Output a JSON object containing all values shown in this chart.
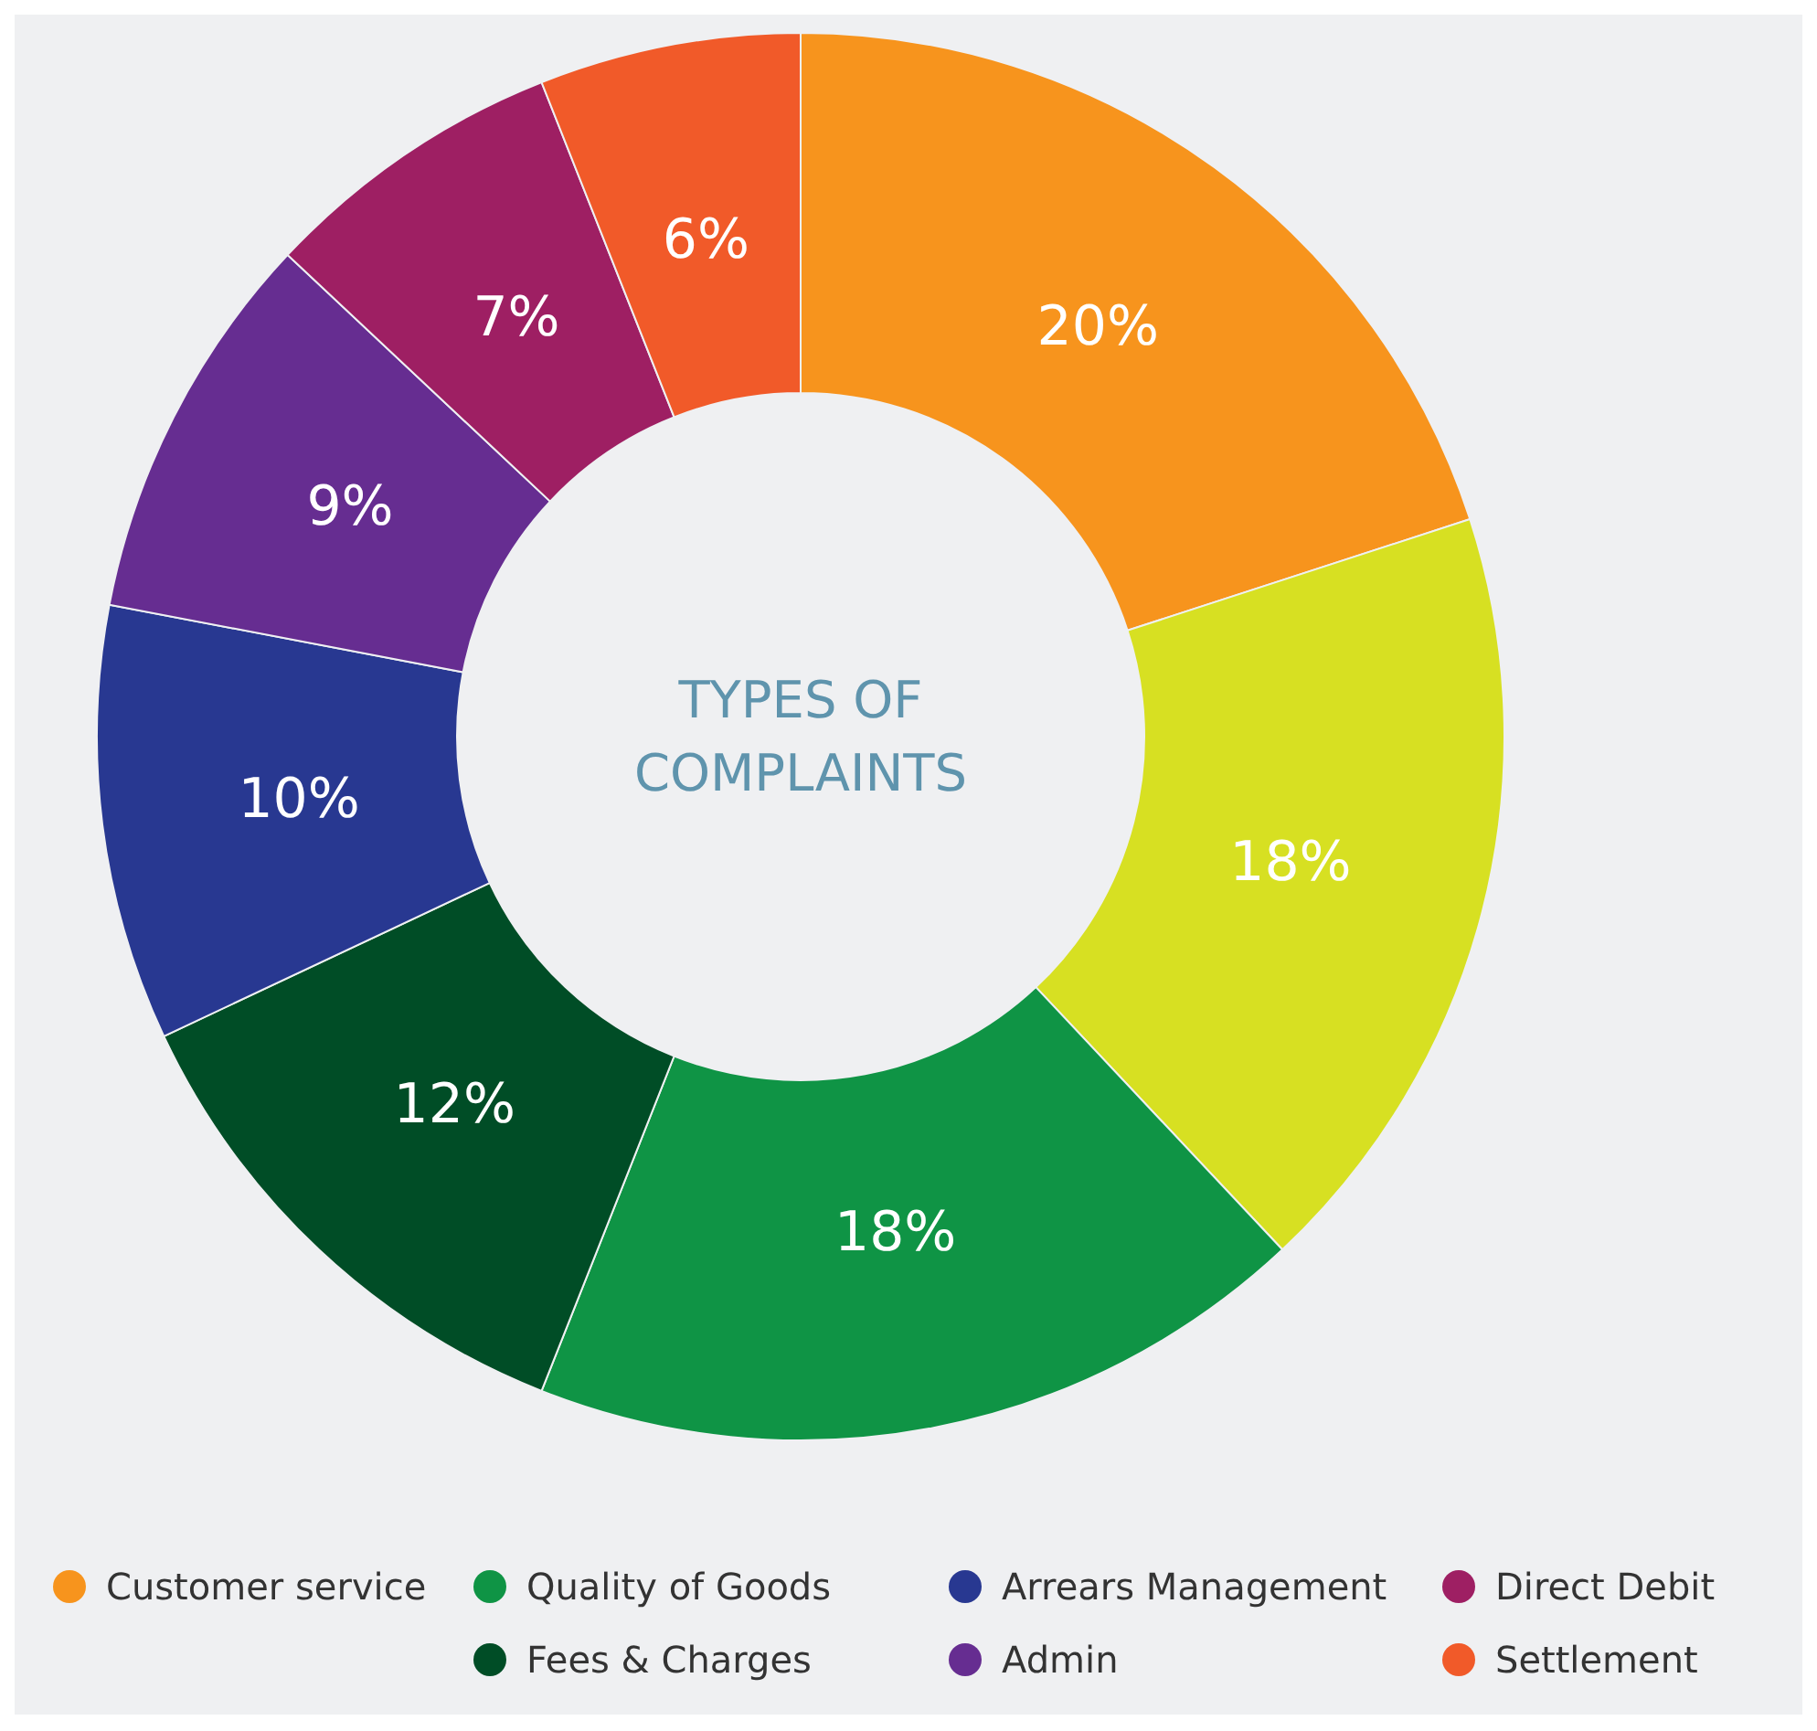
{
  "chart_data": {
    "type": "donut",
    "title": "TYPES OF COMPLAINTS",
    "categories": [
      "Customer service",
      null,
      "Quality of Goods",
      "Fees & Charges",
      "Arrears Management",
      "Admin",
      "Direct Debit",
      "Settlement"
    ],
    "values": [
      20,
      18,
      18,
      12,
      10,
      9,
      7,
      6
    ],
    "value_labels": [
      "20%",
      "18%",
      "18%",
      "12%",
      "10%",
      "9%",
      "7%",
      "6%"
    ],
    "colors": [
      "#f7941d",
      "#d7e022",
      "#0f9445",
      "#004d26",
      "#283891",
      "#662d91",
      "#9e1f63",
      "#f15a29"
    ],
    "legend": "bottom"
  }
}
